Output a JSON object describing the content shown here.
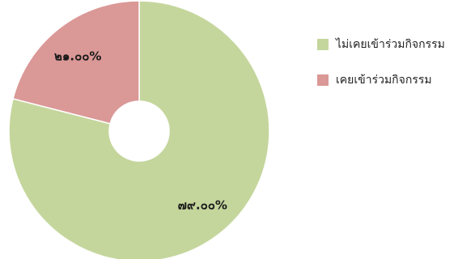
{
  "chart_data": {
    "type": "pie",
    "donut": true,
    "categories": [
      "ไม่เคยเข้าร่วมกิจกรรม",
      "เคยเข้าร่วมกิจกรรม"
    ],
    "values": [
      79.0,
      21.0
    ],
    "data_labels": [
      "๗๙.๐๐%",
      "๒๑.๐๐%"
    ],
    "colors": [
      "#c5d69d",
      "#da9896"
    ],
    "slice_border_color": "#ffffff",
    "legend_position": "right",
    "title": ""
  }
}
